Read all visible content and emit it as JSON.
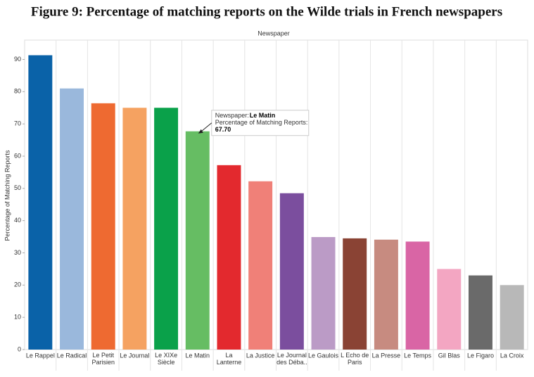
{
  "chart_data": {
    "type": "bar",
    "title": "Figure 9: Percentage of matching reports on the Wilde trials in French newspapers",
    "x_label": "Newspaper",
    "y_label": "Percentage of Matching Reports",
    "categories": [
      "Le Rappel",
      "Le Radical",
      "Le Petit\nParisien",
      "Le Journal",
      "Le XIXe\nSiècle",
      "Le Matin",
      "La\nLanterne",
      "La Justice",
      "Le Journal\ndes Déba..",
      "Le Gaulois",
      "L Echo de\nParis",
      "La Presse",
      "Le Temps",
      "Gil Blas",
      "Le Figaro",
      "La Croix"
    ],
    "values": [
      91.3,
      81.0,
      76.4,
      75.0,
      75.0,
      67.7,
      57.2,
      52.2,
      48.5,
      34.9,
      34.5,
      34.1,
      33.5,
      25.0,
      23.0,
      20.0
    ],
    "colors": [
      "#0a62a8",
      "#9ab8dc",
      "#ee6a31",
      "#f5a261",
      "#0aa14a",
      "#66bd63",
      "#e3292e",
      "#f08078",
      "#7b4e9e",
      "#bb9bc6",
      "#8a4334",
      "#c78b80",
      "#d965a5",
      "#f3a6c2",
      "#6a6a6a",
      "#b8b8b8"
    ],
    "ylim": [
      0,
      96
    ],
    "yticks": [
      0,
      10,
      20,
      30,
      40,
      50,
      60,
      70,
      80,
      90
    ],
    "grid": false,
    "tooltip": {
      "category_index": 5,
      "newspaper_label": "Newspaper:",
      "newspaper": "Le Matin",
      "measure_label": "Percentage of Matching Reports:",
      "value": "67.70"
    }
  }
}
